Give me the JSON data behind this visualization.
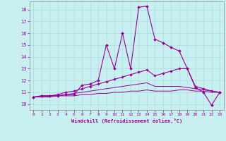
{
  "xlabel": "Windchill (Refroidissement éolien,°C)",
  "bg_color": "#c8f0f0",
  "line_color": "#990099",
  "grid_color": "#aadddd",
  "spine_color": "#888888",
  "ylim": [
    9.5,
    18.7
  ],
  "xlim": [
    -0.5,
    23.5
  ],
  "yticks": [
    10,
    11,
    12,
    13,
    14,
    15,
    16,
    17,
    18
  ],
  "xticks": [
    0,
    1,
    2,
    3,
    4,
    5,
    6,
    7,
    8,
    9,
    10,
    11,
    12,
    13,
    14,
    15,
    16,
    17,
    18,
    19,
    20,
    21,
    22,
    23
  ],
  "series1_x": [
    0,
    1,
    2,
    3,
    4,
    5,
    6,
    7,
    8,
    9,
    10,
    11,
    12,
    13,
    14,
    15,
    16,
    17,
    18,
    19,
    20,
    21,
    22,
    23
  ],
  "series1_y": [
    10.6,
    10.7,
    10.7,
    10.7,
    10.8,
    10.8,
    11.6,
    11.7,
    12.0,
    15.0,
    13.0,
    16.0,
    13.0,
    18.2,
    18.3,
    15.5,
    15.2,
    14.8,
    14.5,
    13.0,
    11.4,
    11.0,
    9.9,
    11.0
  ],
  "series2_x": [
    0,
    1,
    2,
    3,
    4,
    5,
    6,
    7,
    8,
    9,
    10,
    11,
    12,
    13,
    14,
    15,
    16,
    17,
    18,
    19,
    20,
    21,
    22,
    23
  ],
  "series2_y": [
    10.6,
    10.7,
    10.7,
    10.8,
    11.0,
    11.1,
    11.3,
    11.5,
    11.7,
    11.9,
    12.1,
    12.3,
    12.5,
    12.7,
    12.9,
    12.4,
    12.6,
    12.8,
    13.0,
    13.0,
    11.5,
    11.3,
    11.1,
    11.0
  ],
  "series3_x": [
    0,
    1,
    2,
    3,
    4,
    5,
    6,
    7,
    8,
    9,
    10,
    11,
    12,
    13,
    14,
    15,
    16,
    17,
    18,
    19,
    20,
    21,
    22,
    23
  ],
  "series3_y": [
    10.6,
    10.6,
    10.7,
    10.7,
    10.8,
    10.9,
    11.0,
    11.1,
    11.2,
    11.3,
    11.4,
    11.5,
    11.6,
    11.7,
    11.8,
    11.5,
    11.5,
    11.5,
    11.5,
    11.4,
    11.3,
    11.2,
    11.1,
    11.0
  ],
  "series4_x": [
    0,
    1,
    2,
    3,
    4,
    5,
    6,
    7,
    8,
    9,
    10,
    11,
    12,
    13,
    14,
    15,
    16,
    17,
    18,
    19,
    20,
    21,
    22,
    23
  ],
  "series4_y": [
    10.6,
    10.6,
    10.6,
    10.7,
    10.7,
    10.7,
    10.8,
    10.8,
    10.9,
    10.9,
    11.0,
    11.0,
    11.1,
    11.1,
    11.2,
    11.1,
    11.1,
    11.1,
    11.2,
    11.2,
    11.1,
    11.1,
    11.0,
    11.0
  ]
}
